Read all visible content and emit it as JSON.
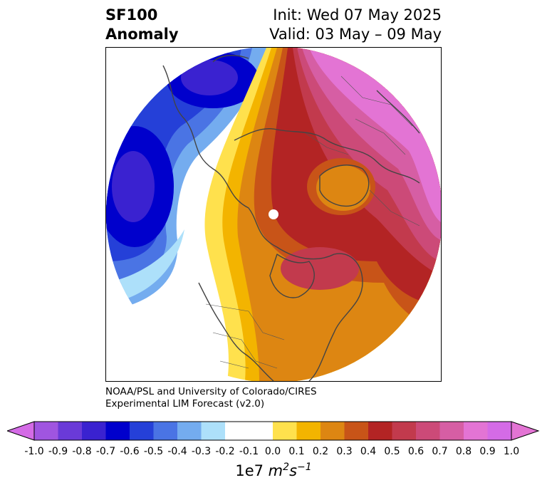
{
  "title": {
    "variable": "SF100",
    "type": "Anomaly",
    "init": "Init: Wed 07 May 2025",
    "valid": "Valid: 03 May – 09 May"
  },
  "credit": {
    "line1": "NOAA/PSL and University of Colorado/CIRES",
    "line2": "Experimental LIM Forecast (v2.0)"
  },
  "colorbar": {
    "levels": [
      {
        "label": "-1.0",
        "color": "#d46be6"
      },
      {
        "label": "-0.9",
        "color": "#a055e0"
      },
      {
        "label": "-0.8",
        "color": "#6a3ad8"
      },
      {
        "label": "-0.7",
        "color": "#3a22d0"
      },
      {
        "label": "-0.6",
        "color": "#0000cc"
      },
      {
        "label": "-0.5",
        "color": "#2540d8"
      },
      {
        "label": "-0.4",
        "color": "#4a74e4"
      },
      {
        "label": "-0.3",
        "color": "#74acef"
      },
      {
        "label": "-0.2",
        "color": "#ade0fa"
      },
      {
        "label": "-0.1",
        "color": "#ffffff"
      },
      {
        "label": "0.0",
        "color": "#ffffff"
      },
      {
        "label": "0.1",
        "color": "#ffe14d"
      },
      {
        "label": "0.2",
        "color": "#f3b400"
      },
      {
        "label": "0.3",
        "color": "#dd8612"
      },
      {
        "label": "0.4",
        "color": "#c85418"
      },
      {
        "label": "0.5",
        "color": "#b32424"
      },
      {
        "label": "0.6",
        "color": "#c23a4d"
      },
      {
        "label": "0.7",
        "color": "#cc4a78"
      },
      {
        "label": "0.8",
        "color": "#d65ea4"
      },
      {
        "label": "0.9",
        "color": "#e374d4"
      },
      {
        "label": "1.0",
        "color": "#d46be6"
      }
    ],
    "under_color": "#d46be6",
    "over_color": "#e374d4",
    "units_base": "1e7 ",
    "units_m": "m",
    "units_m_exp": "2",
    "units_s": "s",
    "units_s_exp": "−1"
  }
}
